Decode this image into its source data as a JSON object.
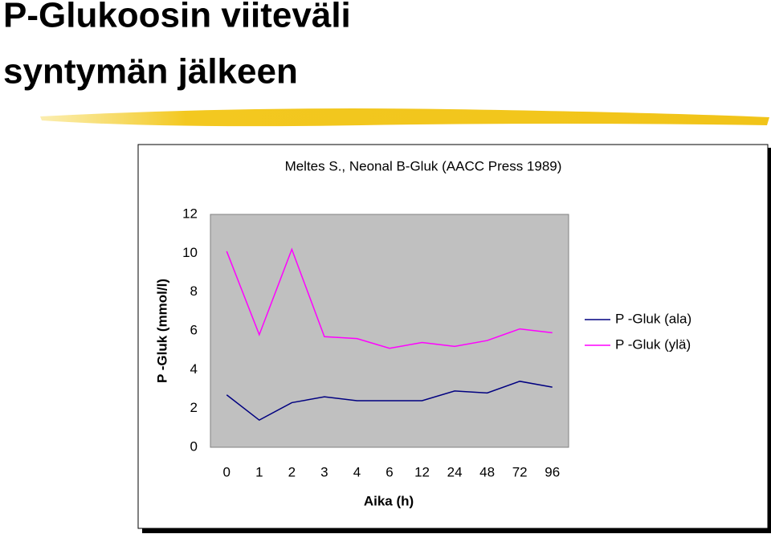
{
  "slide_title": [
    "P-Glukoosin viiteväli",
    "syntymän jälkeen"
  ],
  "chart_data": {
    "type": "line",
    "title": "Meltes S., Neonal B-Gluk (AACC Press 1989)",
    "x_label": "Aika (h)",
    "y_label": "P -Gluk (mmol/l)",
    "categories": [
      "0",
      "1",
      "2",
      "3",
      "4",
      "6",
      "12",
      "24",
      "48",
      "72",
      "96"
    ],
    "series": [
      {
        "name": "P -Gluk (ala)",
        "color": "#000080",
        "values": [
          2.7,
          1.4,
          2.3,
          2.6,
          2.4,
          2.4,
          2.4,
          2.9,
          2.8,
          3.4,
          3.1
        ]
      },
      {
        "name": "P -Gluk (ylä)",
        "color": "#ff00ff",
        "values": [
          10.1,
          5.8,
          10.2,
          5.7,
          5.6,
          5.1,
          5.4,
          5.2,
          5.5,
          6.1,
          5.9
        ]
      }
    ],
    "ylim": [
      0,
      12
    ],
    "yticks": [
      0,
      2,
      4,
      6,
      8,
      10,
      12
    ],
    "grid": false,
    "legend": "right"
  }
}
